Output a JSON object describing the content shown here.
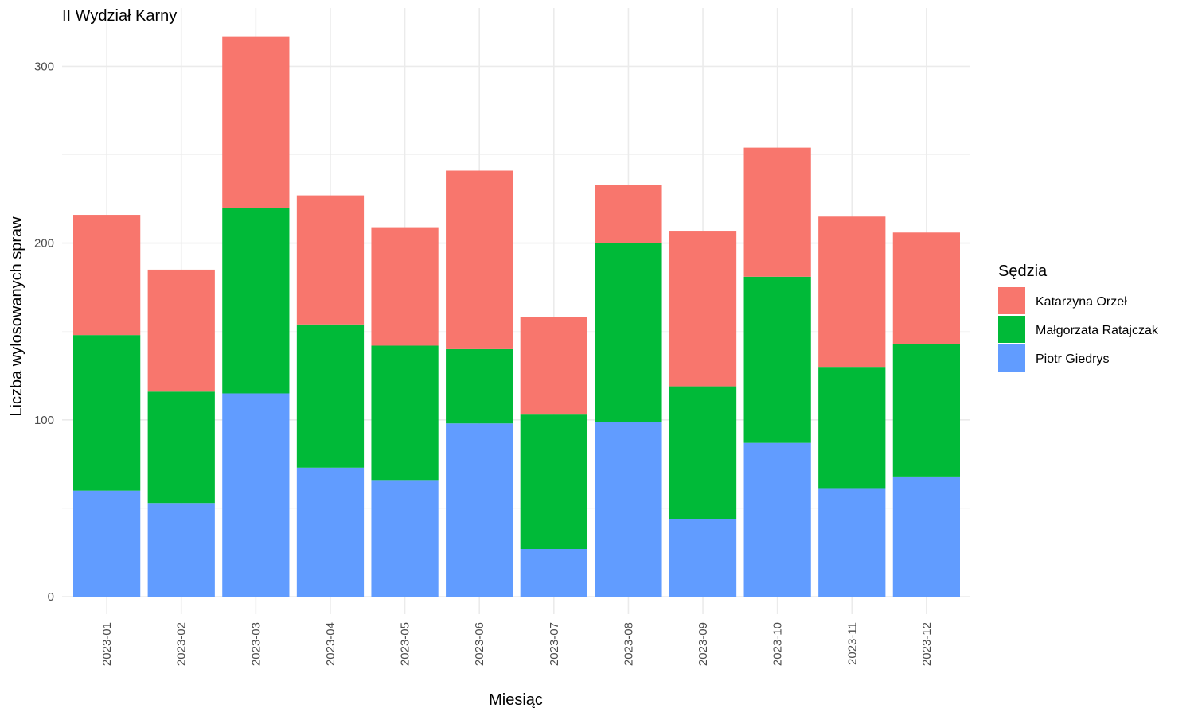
{
  "chart_data": {
    "type": "bar",
    "stacked": true,
    "title": "II Wydział Karny",
    "xlabel": "Miesiąc",
    "ylabel": "Liczba wylosowanych spraw",
    "ylim": [
      0,
      325
    ],
    "yticks": [
      0,
      100,
      200,
      300
    ],
    "grid": true,
    "legend_position": "right",
    "legend_title": "Sędzia",
    "categories": [
      "2023-01",
      "2023-02",
      "2023-03",
      "2023-04",
      "2023-05",
      "2023-06",
      "2023-07",
      "2023-08",
      "2023-09",
      "2023-10",
      "2023-11",
      "2023-12"
    ],
    "series": [
      {
        "name": "Piotr Giedrys",
        "color": "#619CFF",
        "values": [
          60,
          53,
          115,
          73,
          66,
          98,
          27,
          99,
          44,
          87,
          61,
          68
        ]
      },
      {
        "name": "Małgorzata Ratajczak",
        "color": "#00BA38",
        "values": [
          88,
          63,
          105,
          81,
          76,
          42,
          76,
          101,
          75,
          94,
          69,
          75
        ]
      },
      {
        "name": "Katarzyna Orzeł",
        "color": "#F8766D",
        "values": [
          68,
          69,
          97,
          73,
          67,
          101,
          55,
          33,
          88,
          73,
          85,
          63
        ]
      }
    ],
    "legend_order": [
      "Katarzyna Orzeł",
      "Małgorzata Ratajczak",
      "Piotr Giedrys"
    ]
  }
}
